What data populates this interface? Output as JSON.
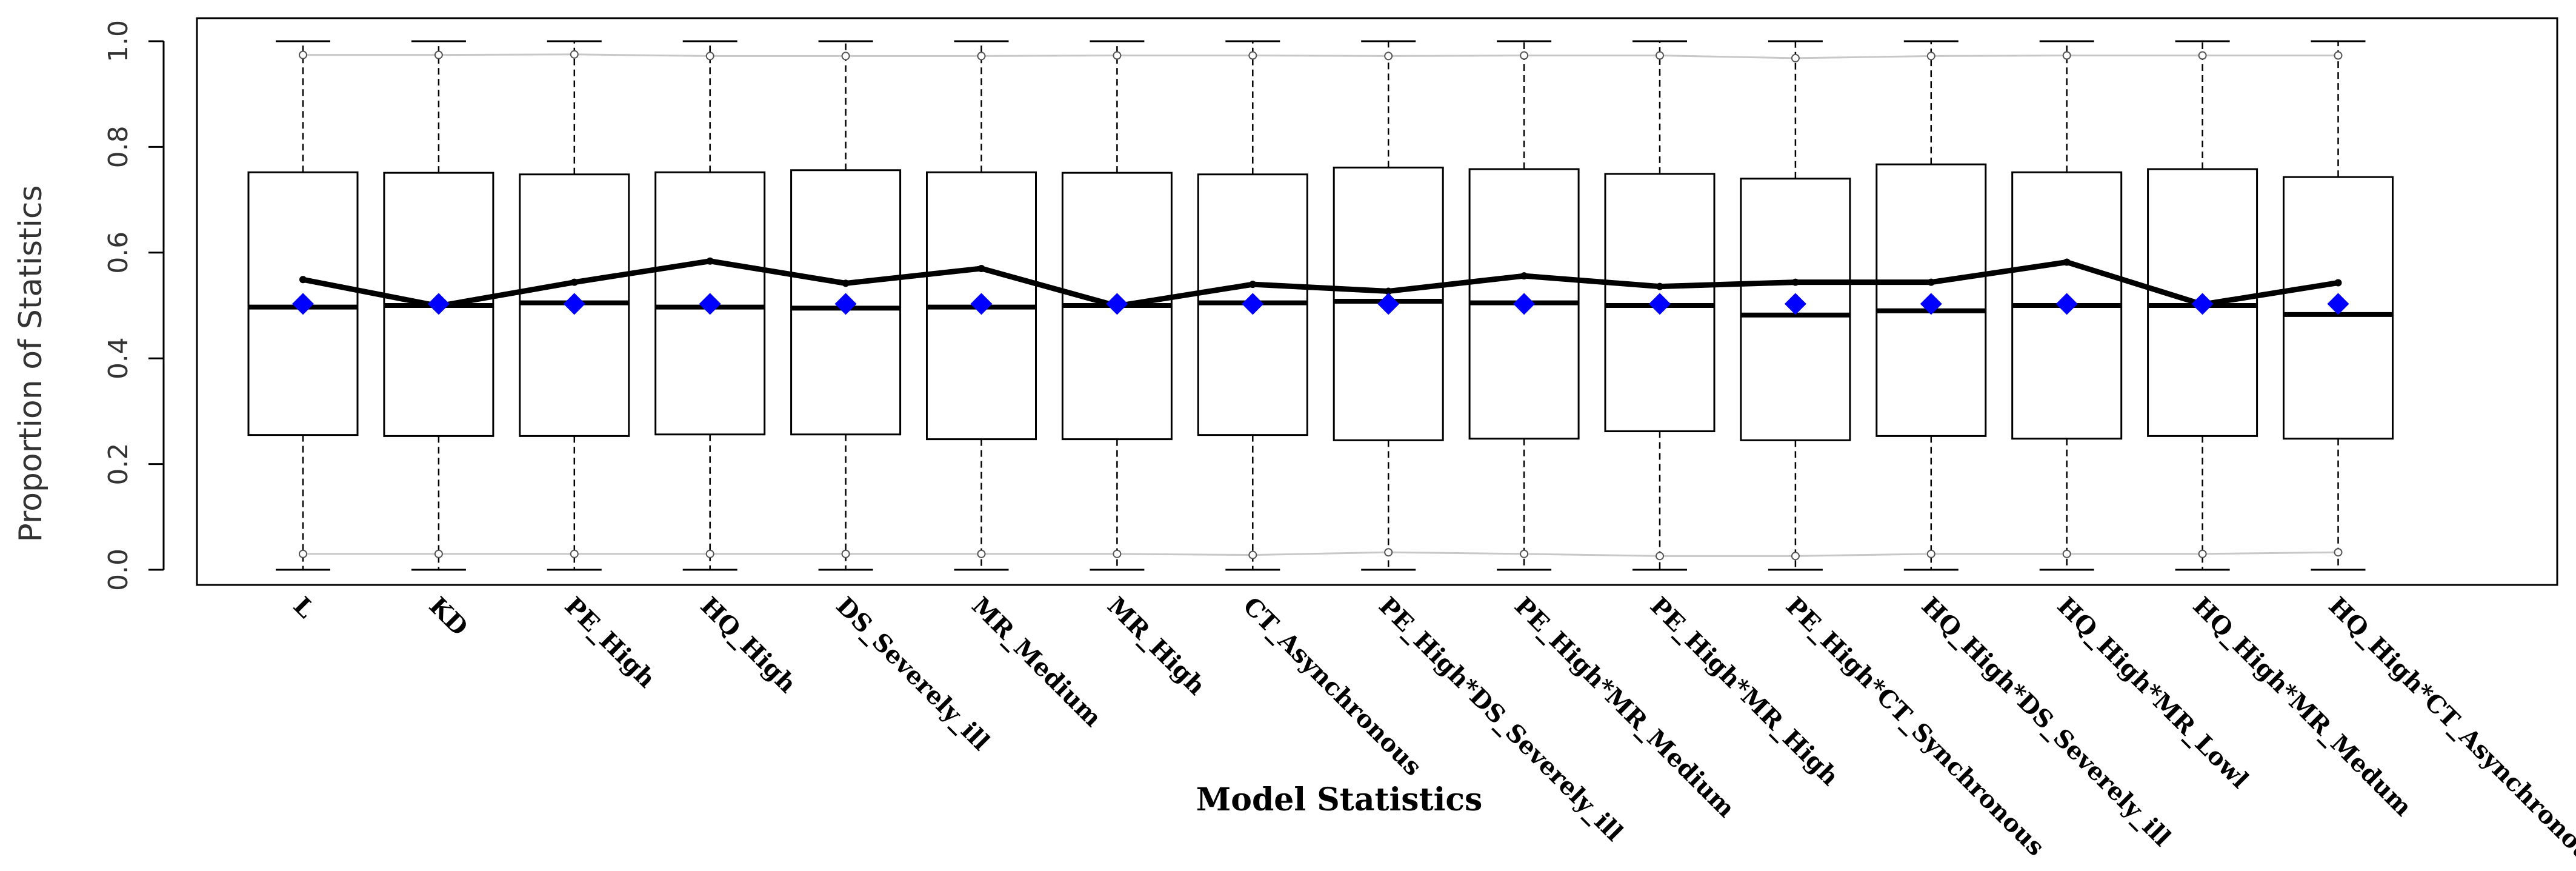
{
  "chart_data": {
    "type": "box",
    "title": "",
    "xlabel": "Model Statistics",
    "ylabel": "Proportion of Statistics",
    "ylim": [
      0,
      1
    ],
    "yticks": [
      "0.0",
      "0.2",
      "0.4",
      "0.6",
      "0.8",
      "1.0"
    ],
    "ytick_values": [
      0,
      0.2,
      0.4,
      0.6,
      0.8,
      1.0
    ],
    "categories": [
      "L",
      "KD",
      "PE_High",
      "HQ_High",
      "DS_Severely_ill",
      "MR_Medium",
      "MR_High",
      "CT_Asynchronous",
      "PE_High*DS_Severely_ill",
      "PE_High*MR_Medium",
      "PE_High*MR_High",
      "PE_High*CT_Synchronous",
      "HQ_High*DS_Severely_ill",
      "HQ_High*MR_Lowl",
      "HQ_High*MR_Medum",
      "HQ_High*CT_Asynchronous"
    ],
    "box_min": [
      0.0,
      0.0,
      0.0,
      0.0,
      0.0,
      0.0,
      0.0,
      0.0,
      0.0,
      0.0,
      0.0,
      0.0,
      0.0,
      0.0,
      0.0,
      0.0
    ],
    "q1": [
      0.255,
      0.253,
      0.253,
      0.256,
      0.256,
      0.247,
      0.247,
      0.255,
      0.245,
      0.248,
      0.262,
      0.245,
      0.253,
      0.248,
      0.253,
      0.248
    ],
    "median": [
      0.497,
      0.5,
      0.505,
      0.497,
      0.495,
      0.497,
      0.5,
      0.505,
      0.508,
      0.505,
      0.5,
      0.482,
      0.49,
      0.5,
      0.5,
      0.483
    ],
    "q3": [
      0.752,
      0.751,
      0.748,
      0.752,
      0.756,
      0.752,
      0.751,
      0.748,
      0.761,
      0.758,
      0.749,
      0.74,
      0.767,
      0.752,
      0.758,
      0.743
    ],
    "box_max": [
      1.0,
      1.0,
      1.0,
      1.0,
      1.0,
      1.0,
      1.0,
      1.0,
      1.0,
      1.0,
      1.0,
      1.0,
      1.0,
      1.0,
      1.0,
      1.0
    ],
    "mean": [
      0.503,
      0.503,
      0.503,
      0.503,
      0.503,
      0.503,
      0.503,
      0.503,
      0.503,
      0.503,
      0.503,
      0.503,
      0.503,
      0.503,
      0.503,
      0.503
    ],
    "trend_line": [
      0.549,
      0.499,
      0.544,
      0.584,
      0.542,
      0.57,
      0.499,
      0.54,
      0.527,
      0.556,
      0.536,
      0.544,
      0.544,
      0.582,
      0.502,
      0.543
    ],
    "upper_quantile": [
      0.974,
      0.974,
      0.975,
      0.972,
      0.972,
      0.972,
      0.973,
      0.973,
      0.972,
      0.973,
      0.973,
      0.968,
      0.972,
      0.973,
      0.973,
      0.973
    ],
    "lower_quantile": [
      0.03,
      0.03,
      0.03,
      0.03,
      0.03,
      0.03,
      0.03,
      0.028,
      0.033,
      0.03,
      0.026,
      0.026,
      0.03,
      0.03,
      0.03,
      0.033
    ],
    "colors": {
      "mean_marker": "#0000ff",
      "trend_line": "#000000",
      "quantile_line": "#c8c8c8",
      "box_stroke": "#000000",
      "median": "#000000"
    }
  }
}
